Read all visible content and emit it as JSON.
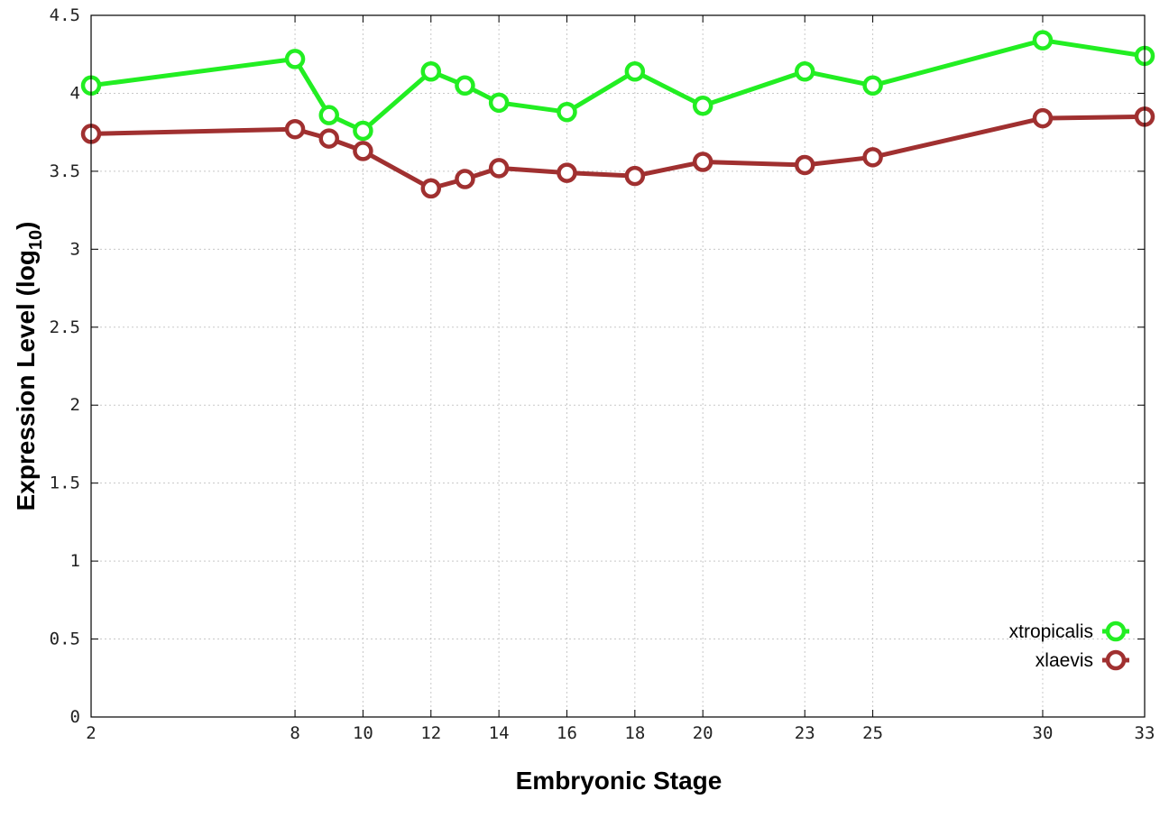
{
  "chart_data": {
    "type": "line",
    "title": "",
    "xlabel": "Embryonic Stage",
    "ylabel_main": "Expression Level (log",
    "ylabel_sub": "10",
    "ylabel_close": ")",
    "x": [
      2,
      8,
      9,
      10,
      12,
      13,
      14,
      16,
      18,
      20,
      23,
      25,
      30,
      33
    ],
    "xticks": [
      2,
      8,
      10,
      12,
      14,
      16,
      18,
      20,
      23,
      25,
      30,
      33
    ],
    "xtick_labels": [
      "2",
      "8",
      "10",
      "12",
      "14",
      "16",
      "18",
      "20",
      "23",
      "25",
      "30",
      "33"
    ],
    "yticks": [
      0,
      0.5,
      1,
      1.5,
      2,
      2.5,
      3,
      3.5,
      4,
      4.5
    ],
    "ytick_labels": [
      "0",
      "0.5",
      "1",
      "1.5",
      "2",
      "2.5",
      "3",
      "3.5",
      "4",
      "4.5"
    ],
    "xlim": [
      2,
      33
    ],
    "ylim": [
      0,
      4.5
    ],
    "grid": true,
    "legend_position": "bottom-right",
    "series": [
      {
        "name": "xtropicalis",
        "color": "#22ee22",
        "values": [
          4.05,
          4.22,
          3.86,
          3.76,
          4.14,
          4.05,
          3.94,
          3.88,
          4.14,
          3.92,
          4.14,
          4.05,
          4.34,
          4.24
        ]
      },
      {
        "name": "xlaevis",
        "color": "#a03030",
        "values": [
          3.74,
          3.77,
          3.71,
          3.63,
          3.39,
          3.45,
          3.52,
          3.49,
          3.47,
          3.56,
          3.54,
          3.59,
          3.84,
          3.85
        ]
      }
    ]
  }
}
